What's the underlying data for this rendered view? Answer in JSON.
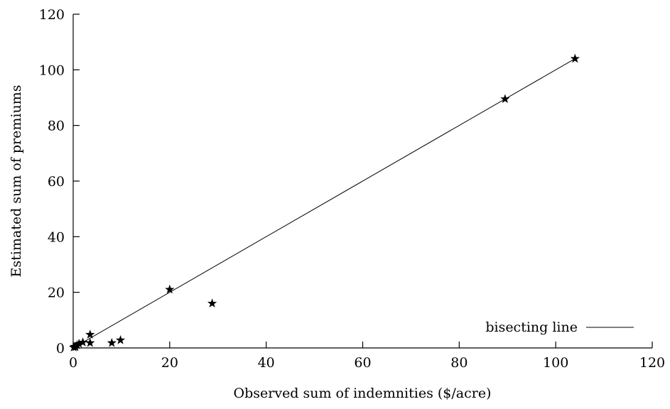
{
  "chart_data": {
    "type": "scatter",
    "title": "",
    "xlabel": "Observed sum of indemnities ($/acre)",
    "ylabel": "Estimated sum of premiums",
    "xlim": [
      0,
      120
    ],
    "ylim": [
      0,
      120
    ],
    "xticks": [
      "0",
      "20",
      "40",
      "60",
      "80",
      "100",
      "120"
    ],
    "yticks": [
      "0",
      "20",
      "40",
      "60",
      "80",
      "100",
      "120"
    ],
    "grid": false,
    "legend": {
      "placement": "bottom-right",
      "entries": [
        "bisecting line"
      ]
    },
    "series": [
      {
        "marker": "star",
        "points": [
          [
            0.1,
            0.2
          ],
          [
            0.3,
            0.5
          ],
          [
            0.5,
            0.3
          ],
          [
            0.8,
            1.0
          ],
          [
            1.2,
            1.5
          ],
          [
            2.0,
            2.0
          ],
          [
            3.5,
            1.8
          ],
          [
            3.5,
            4.8
          ],
          [
            8.0,
            1.8
          ],
          [
            9.8,
            2.8
          ],
          [
            20.0,
            21.0
          ],
          [
            28.8,
            16.0
          ],
          [
            89.5,
            89.5
          ],
          [
            104.0,
            104.0
          ]
        ]
      }
    ],
    "lines": [
      {
        "name": "bisecting line",
        "from": [
          0,
          0
        ],
        "to": [
          104,
          104
        ]
      }
    ]
  }
}
